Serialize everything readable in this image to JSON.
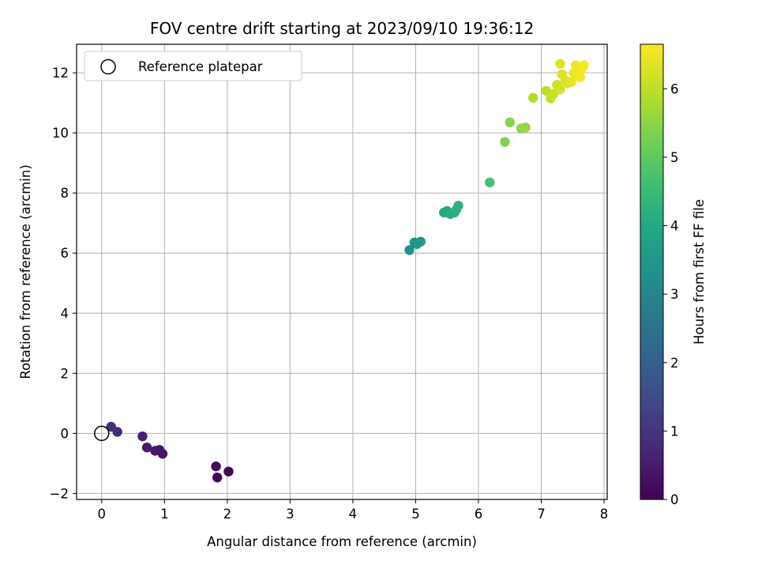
{
  "chart_data": {
    "type": "scatter",
    "title": "FOV centre drift starting at 2023/09/10 19:36:12",
    "xlabel": "Angular distance from reference (arcmin)",
    "ylabel": "Rotation from reference (arcmin)",
    "xlim": [
      -0.4,
      8.05
    ],
    "ylim": [
      -2.2,
      12.95
    ],
    "xticks": [
      0,
      1,
      2,
      3,
      4,
      5,
      6,
      7,
      8
    ],
    "xtick_labels": [
      "0",
      "1",
      "2",
      "3",
      "4",
      "5",
      "6",
      "7",
      "8"
    ],
    "yticks": [
      -2,
      0,
      2,
      4,
      6,
      8,
      10,
      12
    ],
    "ytick_labels": [
      "−2",
      "0",
      "2",
      "4",
      "6",
      "8",
      "10",
      "12"
    ],
    "grid": true,
    "legend": {
      "position": "top-left",
      "entries": [
        "Reference platepar"
      ]
    },
    "reference_point": {
      "x": 0,
      "y": 0,
      "label": "Reference platepar"
    },
    "colorbar": {
      "label": "Hours from first FF file",
      "cmap": "viridis",
      "range": [
        0,
        6.65
      ],
      "ticks": [
        0,
        1,
        2,
        3,
        4,
        5,
        6
      ],
      "tick_labels": [
        "0",
        "1",
        "2",
        "3",
        "4",
        "5",
        "6"
      ]
    },
    "points": [
      {
        "x": 0.15,
        "y": 0.22,
        "t": 0.9
      },
      {
        "x": 0.25,
        "y": 0.05,
        "t": 0.85
      },
      {
        "x": 0.65,
        "y": -0.1,
        "t": 0.6
      },
      {
        "x": 0.72,
        "y": -0.47,
        "t": 0.5
      },
      {
        "x": 0.85,
        "y": -0.58,
        "t": 0.45
      },
      {
        "x": 0.92,
        "y": -0.55,
        "t": 0.4
      },
      {
        "x": 0.97,
        "y": -0.68,
        "t": 0.35
      },
      {
        "x": 1.82,
        "y": -1.1,
        "t": 0.15
      },
      {
        "x": 1.84,
        "y": -1.47,
        "t": 0.1
      },
      {
        "x": 2.02,
        "y": -1.27,
        "t": 0.05
      },
      {
        "x": 4.9,
        "y": 6.1,
        "t": 3.3
      },
      {
        "x": 4.98,
        "y": 6.35,
        "t": 3.35
      },
      {
        "x": 5.02,
        "y": 6.3,
        "t": 3.45
      },
      {
        "x": 5.08,
        "y": 6.38,
        "t": 3.5
      },
      {
        "x": 5.45,
        "y": 7.35,
        "t": 4.0
      },
      {
        "x": 5.5,
        "y": 7.4,
        "t": 4.05
      },
      {
        "x": 5.55,
        "y": 7.3,
        "t": 4.1
      },
      {
        "x": 5.62,
        "y": 7.35,
        "t": 4.15
      },
      {
        "x": 5.65,
        "y": 7.45,
        "t": 4.2
      },
      {
        "x": 5.68,
        "y": 7.58,
        "t": 4.25
      },
      {
        "x": 6.18,
        "y": 8.35,
        "t": 4.65
      },
      {
        "x": 6.42,
        "y": 9.7,
        "t": 5.4
      },
      {
        "x": 6.5,
        "y": 10.35,
        "t": 5.45
      },
      {
        "x": 6.68,
        "y": 10.15,
        "t": 5.55
      },
      {
        "x": 6.75,
        "y": 10.18,
        "t": 5.6
      },
      {
        "x": 6.87,
        "y": 11.17,
        "t": 5.9
      },
      {
        "x": 7.08,
        "y": 11.4,
        "t": 6.0
      },
      {
        "x": 7.15,
        "y": 11.15,
        "t": 6.05
      },
      {
        "x": 7.2,
        "y": 11.3,
        "t": 6.1
      },
      {
        "x": 7.25,
        "y": 11.6,
        "t": 6.15
      },
      {
        "x": 7.3,
        "y": 11.45,
        "t": 6.2
      },
      {
        "x": 7.3,
        "y": 12.3,
        "t": 6.35
      },
      {
        "x": 7.33,
        "y": 11.95,
        "t": 6.3
      },
      {
        "x": 7.38,
        "y": 11.75,
        "t": 6.3
      },
      {
        "x": 7.42,
        "y": 11.65,
        "t": 6.35
      },
      {
        "x": 7.48,
        "y": 11.7,
        "t": 6.4
      },
      {
        "x": 7.52,
        "y": 12.0,
        "t": 6.45
      },
      {
        "x": 7.55,
        "y": 12.25,
        "t": 6.5
      },
      {
        "x": 7.58,
        "y": 11.9,
        "t": 6.5
      },
      {
        "x": 7.62,
        "y": 11.85,
        "t": 6.55
      },
      {
        "x": 7.65,
        "y": 12.15,
        "t": 6.6
      },
      {
        "x": 7.68,
        "y": 12.25,
        "t": 6.62
      }
    ]
  }
}
